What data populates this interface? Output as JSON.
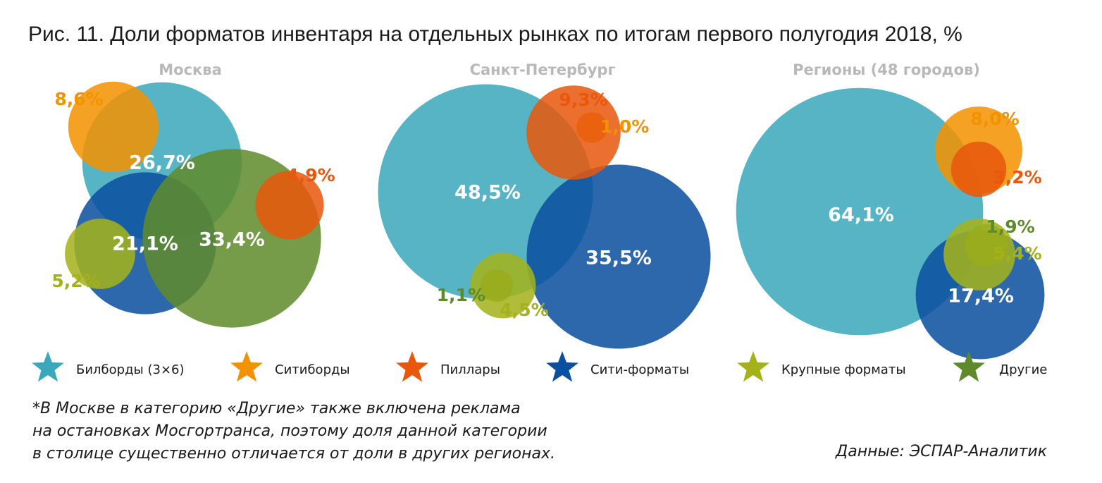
{
  "chart_data": {
    "type": "bubble",
    "title": "Рис. 11. Доли форматов инвентаря на отдельных рынках по итогам первого полугодия 2018, %",
    "categories": [
      {
        "key": "billboards",
        "name": "Билборды (3×6)",
        "color": "#3aa8bc"
      },
      {
        "key": "cityboards",
        "name": "Ситиборды",
        "color": "#f39200"
      },
      {
        "key": "pillars",
        "name": "Пиллары",
        "color": "#e8570c"
      },
      {
        "key": "cityformats",
        "name": "Сити-форматы",
        "color": "#0a4fa0"
      },
      {
        "key": "large",
        "name": "Крупные форматы",
        "color": "#a4b21a"
      },
      {
        "key": "other",
        "name": "Другие",
        "color": "#5f8a2b"
      }
    ],
    "panels": [
      {
        "name": "Москва",
        "values": [
          {
            "key": "billboards",
            "value": 26.7,
            "label": "26,7%"
          },
          {
            "key": "cityboards",
            "value": 8.6,
            "label": "8,6%"
          },
          {
            "key": "pillars",
            "value": 4.9,
            "label": "4,9%"
          },
          {
            "key": "cityformats",
            "value": 21.1,
            "label": "21,1%"
          },
          {
            "key": "large",
            "value": 5.2,
            "label": "5,2%"
          },
          {
            "key": "other",
            "value": 33.4,
            "label": "33,4%"
          }
        ]
      },
      {
        "name": "Санкт-Петербург",
        "values": [
          {
            "key": "billboards",
            "value": 48.5,
            "label": "48,5%"
          },
          {
            "key": "cityboards",
            "value": 1.0,
            "label": "1,0%"
          },
          {
            "key": "pillars",
            "value": 9.3,
            "label": "9,3%"
          },
          {
            "key": "cityformats",
            "value": 35.5,
            "label": "35,5%"
          },
          {
            "key": "large",
            "value": 4.5,
            "label": "4,5%"
          },
          {
            "key": "other",
            "value": 1.1,
            "label": "1,1%"
          }
        ]
      },
      {
        "name": "Регионы (48 городов)",
        "values": [
          {
            "key": "billboards",
            "value": 64.1,
            "label": "64,1%"
          },
          {
            "key": "cityboards",
            "value": 8.0,
            "label": "8,0%"
          },
          {
            "key": "pillars",
            "value": 3.2,
            "label": "3,2%"
          },
          {
            "key": "cityformats",
            "value": 17.4,
            "label": "17,4%"
          },
          {
            "key": "large",
            "value": 5.4,
            "label": "5,4%"
          },
          {
            "key": "other",
            "value": 1.9,
            "label": "1,9%"
          }
        ]
      }
    ]
  },
  "footnote": {
    "line1": "*В Москве в категорию «Другие» также включена реклама",
    "line2": "на остановках Мосгортранса, поэтому доля данной категории",
    "line3": "в столице существенно отличается от доли в других регионах."
  },
  "source": "Данные: ЭСПАР-Аналитик"
}
